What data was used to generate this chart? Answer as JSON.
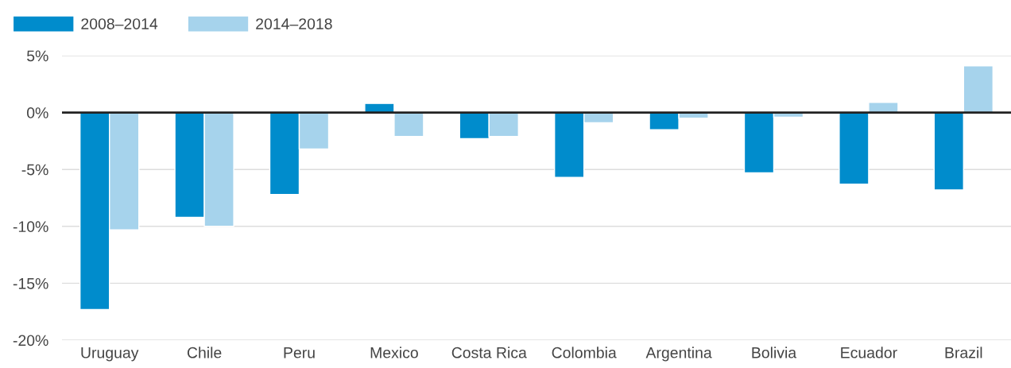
{
  "chart_data": {
    "type": "bar",
    "categories": [
      "Uruguay",
      "Chile",
      "Peru",
      "Mexico",
      "Costa Rica",
      "Colombia",
      "Argentina",
      "Bolivia",
      "Ecuador",
      "Brazil"
    ],
    "series": [
      {
        "name": "2008–2014",
        "color": "#008ccc",
        "values": [
          -17.3,
          -9.2,
          -7.2,
          0.8,
          -2.3,
          -5.7,
          -1.5,
          -5.3,
          -6.3,
          -6.8
        ]
      },
      {
        "name": "2014–2018",
        "color": "#a6d3ec",
        "values": [
          -10.3,
          -10.0,
          -3.2,
          -2.1,
          -2.1,
          -0.9,
          -0.5,
          -0.4,
          0.9,
          4.1
        ]
      }
    ],
    "ylim": [
      -20,
      5
    ],
    "yticks": [
      {
        "value": 5,
        "label": "5%"
      },
      {
        "value": 0,
        "label": "0%"
      },
      {
        "value": -5,
        "label": "-5%"
      },
      {
        "value": -10,
        "label": "-10%"
      },
      {
        "value": -15,
        "label": "-15%"
      },
      {
        "value": -20,
        "label": "-20%"
      }
    ],
    "ref_lines": [
      {
        "axis": "y",
        "value": 0,
        "color": "#222222"
      }
    ],
    "grid": "y",
    "legend": "top left"
  }
}
